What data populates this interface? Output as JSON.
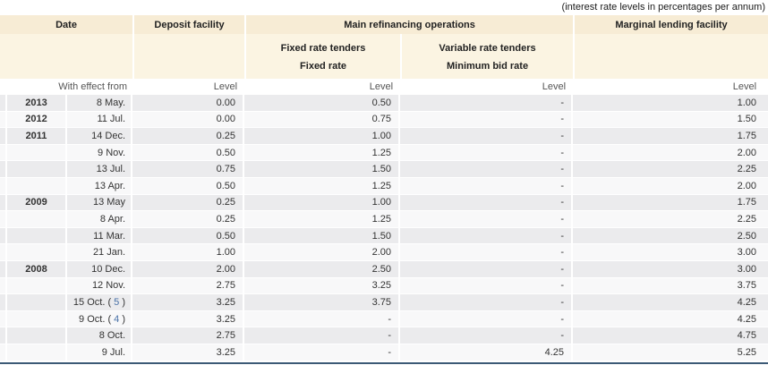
{
  "annotation": "(interest rate levels in percentages per annum)",
  "colors": {
    "header_bg": "#f7ecd5",
    "subheader_bg": "#fbf4e2",
    "row_odd_bg": "#ebebed",
    "row_even_bg": "#f8f8f9",
    "footnote_link": "#4a72a8",
    "bottom_border": "#3c5a76"
  },
  "table": {
    "header": {
      "date": "Date",
      "deposit_facility": "Deposit facility",
      "main_refinancing_operations": "Main refinancing operations",
      "marginal_lending_facility": "Marginal lending facility",
      "fixed_rate_tenders": "Fixed rate tenders",
      "fixed_rate": "Fixed rate",
      "variable_rate_tenders": "Variable rate tenders",
      "minimum_bid_rate": "Minimum bid rate",
      "with_effect_from": "With effect from",
      "level": "Level"
    },
    "rows": [
      {
        "year": "2013",
        "date": "8 May.",
        "footnote": "",
        "deposit": "0.00",
        "fixed": "0.50",
        "variable": "-",
        "marginal": "1.00"
      },
      {
        "year": "2012",
        "date": "11 Jul.",
        "footnote": "",
        "deposit": "0.00",
        "fixed": "0.75",
        "variable": "-",
        "marginal": "1.50"
      },
      {
        "year": "2011",
        "date": "14 Dec.",
        "footnote": "",
        "deposit": "0.25",
        "fixed": "1.00",
        "variable": "-",
        "marginal": "1.75"
      },
      {
        "year": "",
        "date": "9 Nov.",
        "footnote": "",
        "deposit": "0.50",
        "fixed": "1.25",
        "variable": "-",
        "marginal": "2.00"
      },
      {
        "year": "",
        "date": "13 Jul.",
        "footnote": "",
        "deposit": "0.75",
        "fixed": "1.50",
        "variable": "-",
        "marginal": "2.25"
      },
      {
        "year": "",
        "date": "13 Apr.",
        "footnote": "",
        "deposit": "0.50",
        "fixed": "1.25",
        "variable": "-",
        "marginal": "2.00"
      },
      {
        "year": "2009",
        "date": "13 May",
        "footnote": "",
        "deposit": "0.25",
        "fixed": "1.00",
        "variable": "-",
        "marginal": "1.75"
      },
      {
        "year": "",
        "date": "8 Apr.",
        "footnote": "",
        "deposit": "0.25",
        "fixed": "1.25",
        "variable": "-",
        "marginal": "2.25"
      },
      {
        "year": "",
        "date": "11 Mar.",
        "footnote": "",
        "deposit": "0.50",
        "fixed": "1.50",
        "variable": "-",
        "marginal": "2.50"
      },
      {
        "year": "",
        "date": "21 Jan.",
        "footnote": "",
        "deposit": "1.00",
        "fixed": "2.00",
        "variable": "-",
        "marginal": "3.00"
      },
      {
        "year": "2008",
        "date": "10 Dec.",
        "footnote": "",
        "deposit": "2.00",
        "fixed": "2.50",
        "variable": "-",
        "marginal": "3.00"
      },
      {
        "year": "",
        "date": "12 Nov.",
        "footnote": "",
        "deposit": "2.75",
        "fixed": "3.25",
        "variable": "-",
        "marginal": "3.75"
      },
      {
        "year": "",
        "date": "15 Oct.",
        "footnote": "5",
        "deposit": "3.25",
        "fixed": "3.75",
        "variable": "-",
        "marginal": "4.25"
      },
      {
        "year": "",
        "date": "9 Oct.",
        "footnote": "4",
        "deposit": "3.25",
        "fixed": "-",
        "variable": "-",
        "marginal": "4.25"
      },
      {
        "year": "",
        "date": "8 Oct.",
        "footnote": "",
        "deposit": "2.75",
        "fixed": "-",
        "variable": "-",
        "marginal": "4.75"
      },
      {
        "year": "",
        "date": "9 Jul.",
        "footnote": "",
        "deposit": "3.25",
        "fixed": "-",
        "variable": "4.25",
        "marginal": "5.25"
      }
    ]
  }
}
